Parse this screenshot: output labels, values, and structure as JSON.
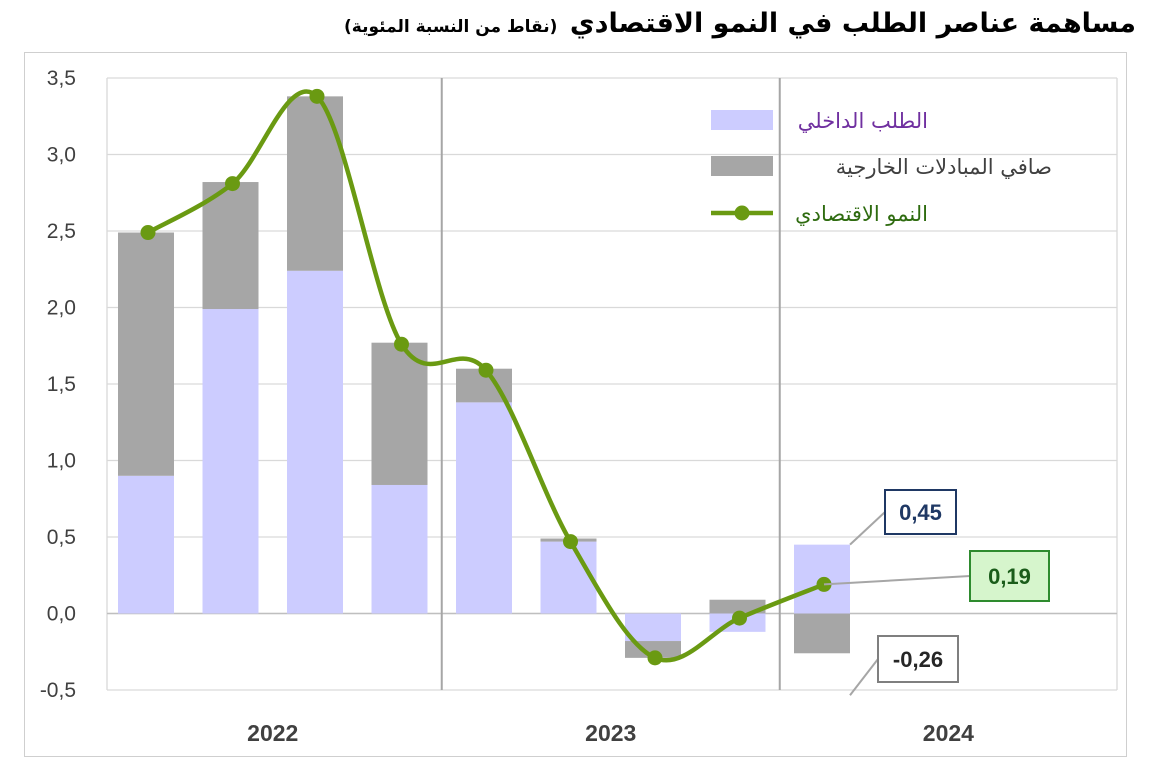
{
  "title": {
    "main": "مساهمة عناصر الطلب في النمو الاقتصادي",
    "sub": "(نقاط من النسبة المئوية)"
  },
  "colors": {
    "domestic_demand": "#ccccff",
    "net_trade": "#a6a6a6",
    "growth_line": "#6a9a12",
    "grid": "#d9d9d9",
    "axis_text": "#404040",
    "label_045_border": "#1f3864",
    "label_019_border": "#2e8b2e",
    "label_019_fill": "#d6f5cc",
    "label_026_border": "#7f7f7f"
  },
  "chart_data": {
    "type": "bar",
    "stacked": true,
    "ylim": [
      -0.5,
      3.5
    ],
    "y_ticks": [
      "-0,5",
      "0,0",
      "0,5",
      "1,0",
      "1,5",
      "2,0",
      "2,5",
      "3,0",
      "3,5"
    ],
    "y_tick_values": [
      -0.5,
      0,
      0.5,
      1,
      1.5,
      2,
      2.5,
      3,
      3.5
    ],
    "year_groups": [
      {
        "label": "2022",
        "quarters": 4
      },
      {
        "label": "2023",
        "quarters": 4
      },
      {
        "label": "2024",
        "quarters": 1
      }
    ],
    "grid": true,
    "legend_position": "top-right",
    "series": [
      {
        "name": "الطلب الداخلي",
        "kind": "bar",
        "color_key": "domestic_demand",
        "values": [
          0.9,
          1.99,
          2.24,
          0.84,
          1.38,
          0.47,
          -0.18,
          -0.12,
          0.45
        ]
      },
      {
        "name": "صافي المبادلات الخارجية",
        "kind": "bar",
        "color_key": "net_trade",
        "values": [
          1.59,
          0.83,
          1.14,
          0.93,
          0.22,
          0.02,
          -0.11,
          0.09,
          -0.26
        ]
      },
      {
        "name": "النمو الاقتصادي",
        "kind": "line",
        "color_key": "growth_line",
        "values": [
          2.49,
          2.81,
          3.38,
          1.76,
          1.59,
          0.47,
          -0.29,
          -0.03,
          0.19
        ]
      }
    ],
    "annotations": [
      {
        "text": "0,45",
        "value": 0.45,
        "target": "domestic_demand_2024"
      },
      {
        "text": "0,19",
        "value": 0.19,
        "target": "growth_2024"
      },
      {
        "text": "-0,26",
        "value": -0.26,
        "target": "net_trade_2024"
      }
    ]
  }
}
